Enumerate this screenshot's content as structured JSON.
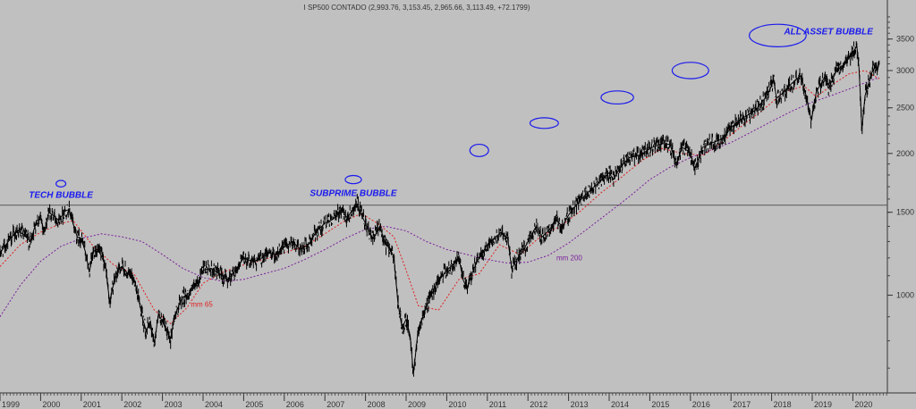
{
  "chart_data": {
    "type": "line",
    "title": "I SP500 CONTADO (2,993.76, 3,153.45, 2,965.66, 3,113.49, +72.1799)",
    "y_scale": "log",
    "ylim": [
      620,
      3950
    ],
    "y_ticks": [
      1000,
      1500,
      2000,
      2500,
      3000,
      3500
    ],
    "y_tick_labels": [
      "1000",
      "1500",
      "2000",
      "2500",
      "3000",
      "3500"
    ],
    "x_tick_labels": [
      "1999",
      "2000",
      "2001",
      "2002",
      "2003",
      "2004",
      "2005",
      "2006",
      "2007",
      "2008",
      "2009",
      "2010",
      "2011",
      "2012",
      "2013",
      "2014",
      "2015",
      "2016",
      "2017",
      "2018",
      "2019",
      "2020"
    ],
    "xlim": [
      1999.0,
      2020.85
    ],
    "horizontal_line": 1553,
    "grid": false,
    "colors": {
      "background": "#c0c0c0",
      "price": "#000000",
      "ma65": "#e02020",
      "ma200": "#7a1f9a",
      "annotation": "#1a1aee",
      "reference_line": "#555555"
    },
    "series": [
      {
        "name": "",
        "style": "price-bars",
        "points": [
          [
            1999.0,
            1229
          ],
          [
            1999.15,
            1280
          ],
          [
            1999.3,
            1335
          ],
          [
            1999.45,
            1372
          ],
          [
            1999.6,
            1340
          ],
          [
            1999.75,
            1300
          ],
          [
            1999.9,
            1440
          ],
          [
            2000.0,
            1455
          ],
          [
            2000.1,
            1360
          ],
          [
            2000.2,
            1498
          ],
          [
            2000.3,
            1480
          ],
          [
            2000.45,
            1440
          ],
          [
            2000.6,
            1510
          ],
          [
            2000.7,
            1520
          ],
          [
            2000.8,
            1420
          ],
          [
            2000.9,
            1330
          ],
          [
            2001.0,
            1320
          ],
          [
            2001.1,
            1240
          ],
          [
            2001.2,
            1120
          ],
          [
            2001.3,
            1240
          ],
          [
            2001.4,
            1250
          ],
          [
            2001.5,
            1210
          ],
          [
            2001.6,
            1150
          ],
          [
            2001.7,
            965
          ],
          [
            2001.8,
            1060
          ],
          [
            2001.9,
            1130
          ],
          [
            2002.0,
            1150
          ],
          [
            2002.15,
            1110
          ],
          [
            2002.3,
            1080
          ],
          [
            2002.4,
            1000
          ],
          [
            2002.5,
            900
          ],
          [
            2002.6,
            840
          ],
          [
            2002.7,
            880
          ],
          [
            2002.8,
            790
          ],
          [
            2002.9,
            910
          ],
          [
            2003.0,
            880
          ],
          [
            2003.1,
            840
          ],
          [
            2003.2,
            810
          ],
          [
            2003.3,
            900
          ],
          [
            2003.4,
            950
          ],
          [
            2003.5,
            990
          ],
          [
            2003.6,
            1000
          ],
          [
            2003.7,
            1020
          ],
          [
            2003.8,
            1040
          ],
          [
            2003.9,
            1080
          ],
          [
            2004.0,
            1130
          ],
          [
            2004.2,
            1140
          ],
          [
            2004.4,
            1110
          ],
          [
            2004.6,
            1080
          ],
          [
            2004.8,
            1130
          ],
          [
            2005.0,
            1200
          ],
          [
            2005.2,
            1180
          ],
          [
            2005.4,
            1190
          ],
          [
            2005.6,
            1230
          ],
          [
            2005.8,
            1220
          ],
          [
            2006.0,
            1265
          ],
          [
            2006.2,
            1300
          ],
          [
            2006.4,
            1250
          ],
          [
            2006.6,
            1280
          ],
          [
            2006.8,
            1370
          ],
          [
            2007.0,
            1420
          ],
          [
            2007.2,
            1450
          ],
          [
            2007.4,
            1520
          ],
          [
            2007.55,
            1460
          ],
          [
            2007.7,
            1530
          ],
          [
            2007.8,
            1560
          ],
          [
            2007.9,
            1480
          ],
          [
            2008.0,
            1420
          ],
          [
            2008.1,
            1350
          ],
          [
            2008.2,
            1320
          ],
          [
            2008.35,
            1400
          ],
          [
            2008.5,
            1280
          ],
          [
            2008.6,
            1260
          ],
          [
            2008.7,
            1200
          ],
          [
            2008.8,
            960
          ],
          [
            2008.9,
            850
          ],
          [
            2009.0,
            890
          ],
          [
            2009.1,
            820
          ],
          [
            2009.18,
            680
          ],
          [
            2009.3,
            850
          ],
          [
            2009.45,
            920
          ],
          [
            2009.6,
            990
          ],
          [
            2009.75,
            1060
          ],
          [
            2009.9,
            1100
          ],
          [
            2010.0,
            1130
          ],
          [
            2010.15,
            1160
          ],
          [
            2010.3,
            1200
          ],
          [
            2010.4,
            1080
          ],
          [
            2010.5,
            1030
          ],
          [
            2010.6,
            1100
          ],
          [
            2010.75,
            1180
          ],
          [
            2010.9,
            1240
          ],
          [
            2011.0,
            1280
          ],
          [
            2011.2,
            1330
          ],
          [
            2011.35,
            1360
          ],
          [
            2011.5,
            1320
          ],
          [
            2011.6,
            1140
          ],
          [
            2011.75,
            1200
          ],
          [
            2011.9,
            1250
          ],
          [
            2012.0,
            1300
          ],
          [
            2012.2,
            1400
          ],
          [
            2012.35,
            1330
          ],
          [
            2012.5,
            1370
          ],
          [
            2012.7,
            1440
          ],
          [
            2012.85,
            1400
          ],
          [
            2013.0,
            1480
          ],
          [
            2013.2,
            1560
          ],
          [
            2013.4,
            1630
          ],
          [
            2013.6,
            1690
          ],
          [
            2013.8,
            1750
          ],
          [
            2014.0,
            1820
          ],
          [
            2014.1,
            1760
          ],
          [
            2014.3,
            1880
          ],
          [
            2014.5,
            1960
          ],
          [
            2014.8,
            1990
          ],
          [
            2015.0,
            2050
          ],
          [
            2015.3,
            2100
          ],
          [
            2015.5,
            2090
          ],
          [
            2015.65,
            1900
          ],
          [
            2015.8,
            2060
          ],
          [
            2016.0,
            2010
          ],
          [
            2016.1,
            1850
          ],
          [
            2016.3,
            2060
          ],
          [
            2016.5,
            2100
          ],
          [
            2016.8,
            2150
          ],
          [
            2017.0,
            2270
          ],
          [
            2017.3,
            2380
          ],
          [
            2017.6,
            2470
          ],
          [
            2017.9,
            2660
          ],
          [
            2018.05,
            2860
          ],
          [
            2018.12,
            2620
          ],
          [
            2018.3,
            2700
          ],
          [
            2018.5,
            2820
          ],
          [
            2018.72,
            2930
          ],
          [
            2018.85,
            2650
          ],
          [
            2018.98,
            2350
          ],
          [
            2019.1,
            2700
          ],
          [
            2019.3,
            2900
          ],
          [
            2019.4,
            2750
          ],
          [
            2019.6,
            3000
          ],
          [
            2019.8,
            3100
          ],
          [
            2019.95,
            3230
          ],
          [
            2020.1,
            3380
          ],
          [
            2020.15,
            3050
          ],
          [
            2020.2,
            2500
          ],
          [
            2020.22,
            2240
          ],
          [
            2020.3,
            2650
          ],
          [
            2020.45,
            2950
          ],
          [
            2020.55,
            3050
          ],
          [
            2020.6,
            2980
          ],
          [
            2020.65,
            3113
          ]
        ]
      },
      {
        "name": "mm 65",
        "style": "dotted",
        "points": [
          [
            1999.0,
            1150
          ],
          [
            1999.5,
            1280
          ],
          [
            2000.0,
            1360
          ],
          [
            2000.5,
            1420
          ],
          [
            2000.8,
            1440
          ],
          [
            2001.3,
            1270
          ],
          [
            2001.8,
            1160
          ],
          [
            2002.3,
            1110
          ],
          [
            2002.8,
            930
          ],
          [
            2003.2,
            870
          ],
          [
            2003.6,
            940
          ],
          [
            2004.0,
            1060
          ],
          [
            2004.5,
            1120
          ],
          [
            2005.0,
            1160
          ],
          [
            2005.5,
            1190
          ],
          [
            2006.0,
            1230
          ],
          [
            2006.5,
            1270
          ],
          [
            2007.0,
            1350
          ],
          [
            2007.5,
            1440
          ],
          [
            2007.9,
            1490
          ],
          [
            2008.3,
            1420
          ],
          [
            2008.7,
            1330
          ],
          [
            2009.0,
            1130
          ],
          [
            2009.3,
            950
          ],
          [
            2009.8,
            930
          ],
          [
            2010.3,
            1080
          ],
          [
            2010.8,
            1110
          ],
          [
            2011.3,
            1280
          ],
          [
            2011.8,
            1220
          ],
          [
            2012.3,
            1330
          ],
          [
            2012.8,
            1400
          ],
          [
            2013.3,
            1510
          ],
          [
            2013.8,
            1650
          ],
          [
            2014.3,
            1780
          ],
          [
            2014.8,
            1930
          ],
          [
            2015.3,
            2050
          ],
          [
            2015.8,
            2000
          ],
          [
            2016.3,
            1980
          ],
          [
            2016.8,
            2120
          ],
          [
            2017.3,
            2300
          ],
          [
            2017.8,
            2480
          ],
          [
            2018.3,
            2700
          ],
          [
            2018.8,
            2780
          ],
          [
            2019.1,
            2640
          ],
          [
            2019.5,
            2800
          ],
          [
            2019.9,
            2950
          ],
          [
            2020.3,
            3000
          ],
          [
            2020.65,
            2880
          ]
        ]
      },
      {
        "name": "mm 200",
        "style": "dotted",
        "points": [
          [
            1999.0,
            900
          ],
          [
            1999.5,
            1050
          ],
          [
            2000.0,
            1180
          ],
          [
            2000.5,
            1270
          ],
          [
            2001.0,
            1320
          ],
          [
            2001.5,
            1350
          ],
          [
            2002.0,
            1330
          ],
          [
            2002.5,
            1300
          ],
          [
            2003.0,
            1220
          ],
          [
            2003.5,
            1140
          ],
          [
            2004.0,
            1090
          ],
          [
            2004.5,
            1070
          ],
          [
            2005.0,
            1080
          ],
          [
            2005.5,
            1110
          ],
          [
            2006.0,
            1140
          ],
          [
            2006.5,
            1190
          ],
          [
            2007.0,
            1250
          ],
          [
            2007.5,
            1320
          ],
          [
            2008.0,
            1380
          ],
          [
            2008.5,
            1400
          ],
          [
            2009.0,
            1370
          ],
          [
            2009.5,
            1300
          ],
          [
            2010.0,
            1250
          ],
          [
            2010.5,
            1220
          ],
          [
            2011.0,
            1190
          ],
          [
            2011.5,
            1170
          ],
          [
            2012.0,
            1175
          ],
          [
            2012.5,
            1215
          ],
          [
            2013.0,
            1290
          ],
          [
            2013.5,
            1390
          ],
          [
            2014.0,
            1500
          ],
          [
            2014.5,
            1620
          ],
          [
            2015.0,
            1760
          ],
          [
            2015.5,
            1870
          ],
          [
            2016.0,
            1960
          ],
          [
            2016.5,
            2030
          ],
          [
            2017.0,
            2110
          ],
          [
            2017.5,
            2220
          ],
          [
            2018.0,
            2340
          ],
          [
            2018.5,
            2460
          ],
          [
            2019.0,
            2570
          ],
          [
            2019.5,
            2660
          ],
          [
            2020.0,
            2760
          ],
          [
            2020.5,
            2870
          ],
          [
            2020.65,
            2900
          ]
        ]
      }
    ],
    "annotations": [
      {
        "text": "TECH BUBBLE",
        "x": 2000.5,
        "y": 1610
      },
      {
        "text": "SUBPRIME BUBBLE",
        "x": 2007.7,
        "y": 1625
      },
      {
        "text": "ALL ASSET BUBBLE",
        "x": 2019.4,
        "y": 3580
      }
    ],
    "series_labels": [
      {
        "text": "mm 65",
        "series": "mm 65",
        "x": 2003.7,
        "y": 945
      },
      {
        "text": "mm 200",
        "series": "mm 200",
        "x": 2012.7,
        "y": 1185
      }
    ],
    "bubble_markers": [
      {
        "x": 2000.5,
        "y": 1725,
        "rx": 0.12,
        "ry": 0.016
      },
      {
        "x": 2007.7,
        "y": 1760,
        "rx": 0.2,
        "ry": 0.02
      },
      {
        "x": 2010.8,
        "y": 2030,
        "rx": 0.23,
        "ry": 0.03
      },
      {
        "x": 2012.4,
        "y": 2320,
        "rx": 0.35,
        "ry": 0.026
      },
      {
        "x": 2014.2,
        "y": 2630,
        "rx": 0.4,
        "ry": 0.032
      },
      {
        "x": 2016.0,
        "y": 3000,
        "rx": 0.45,
        "ry": 0.04
      },
      {
        "x": 2018.15,
        "y": 3560,
        "rx": 0.7,
        "ry": 0.055
      }
    ]
  }
}
